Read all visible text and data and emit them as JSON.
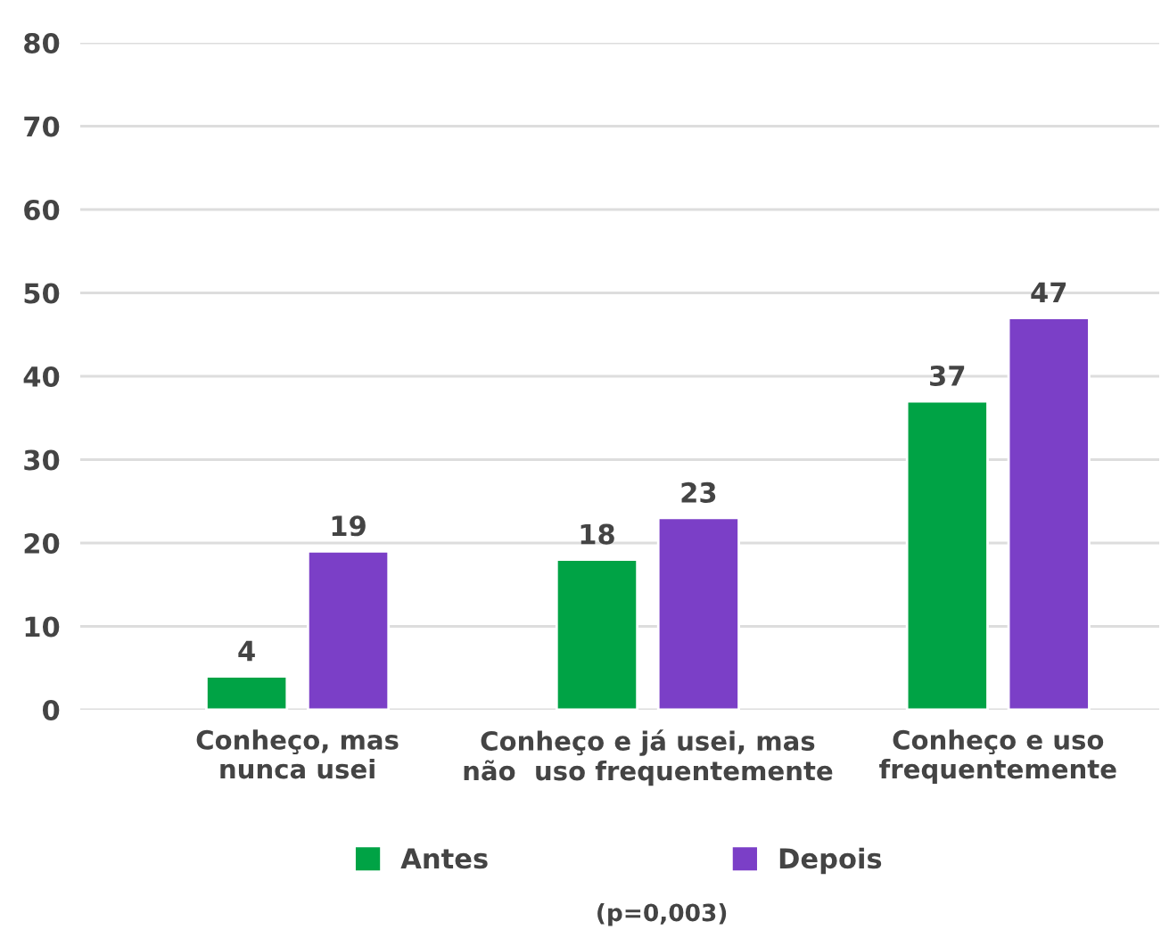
{
  "chart_data": {
    "type": "bar",
    "categories": [
      "Conheço, mas\nnunca usei",
      "Conheço e já usei, mas\nnão  uso frequentemente",
      "Conheço e uso\nfrequentemente"
    ],
    "series": [
      {
        "name": "Antes",
        "color": "#00a345",
        "values": [
          4,
          18,
          37
        ]
      },
      {
        "name": "Depois",
        "color": "#7b3fc7",
        "values": [
          19,
          23,
          47
        ]
      }
    ],
    "ylim": [
      0,
      80
    ],
    "yticks": [
      0,
      10,
      20,
      30,
      40,
      50,
      60,
      70,
      80
    ],
    "grid": "y",
    "legend": "bottom",
    "data_labels": true,
    "annotations": [
      "(p=0,003)"
    ]
  }
}
